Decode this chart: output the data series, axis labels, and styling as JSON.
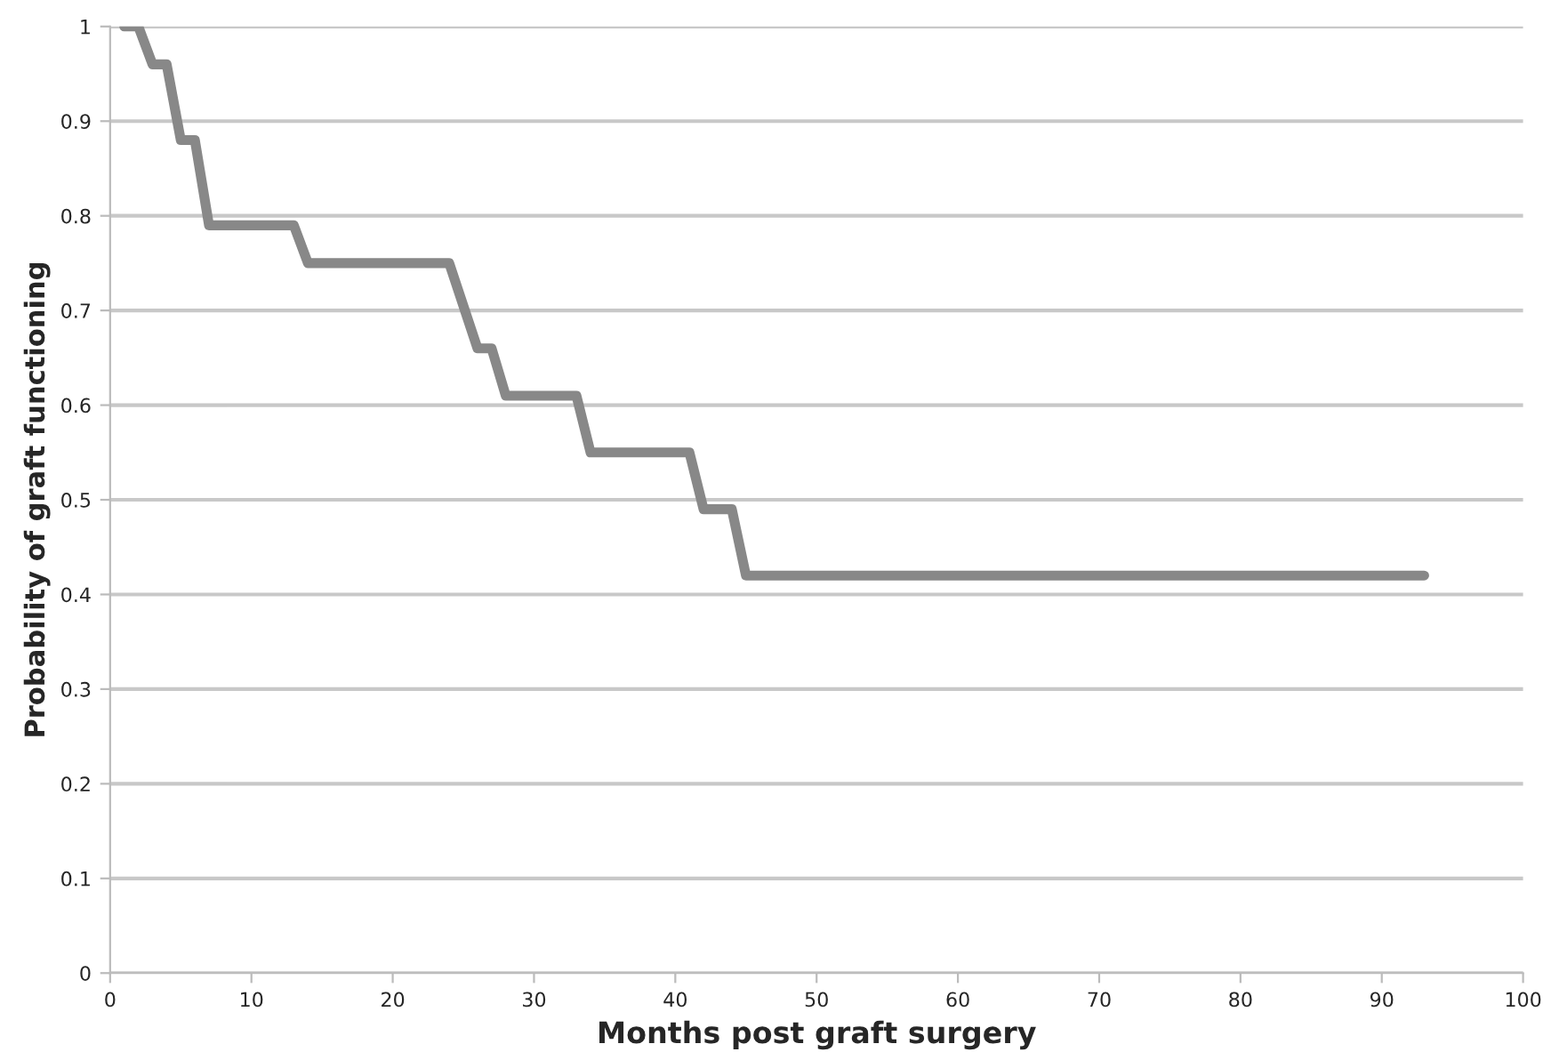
{
  "chart_data": {
    "type": "line",
    "xlabel": "Months post graft surgery",
    "ylabel": "Probability of graft functioning",
    "x": [
      1,
      2,
      3,
      4,
      5,
      6,
      7,
      13,
      14,
      24,
      26,
      27,
      28,
      33,
      34,
      41,
      42,
      44,
      45,
      93
    ],
    "series": [
      {
        "color": "#888888",
        "values": [
          1.0,
          1.0,
          0.96,
          0.96,
          0.88,
          0.88,
          0.79,
          0.79,
          0.75,
          0.75,
          0.66,
          0.66,
          0.61,
          0.61,
          0.55,
          0.55,
          0.49,
          0.49,
          0.42,
          0.42
        ]
      }
    ],
    "xlim": [
      0,
      100
    ],
    "xticks": [
      0,
      10,
      20,
      30,
      40,
      50,
      60,
      70,
      80,
      90,
      100
    ],
    "ylim": [
      0,
      1
    ],
    "yticks": [
      0,
      0.1,
      0.2,
      0.3,
      0.4,
      0.5,
      0.6,
      0.7,
      0.8,
      0.9,
      1
    ],
    "grid": "y",
    "marker": "none",
    "line_style": "solid"
  }
}
